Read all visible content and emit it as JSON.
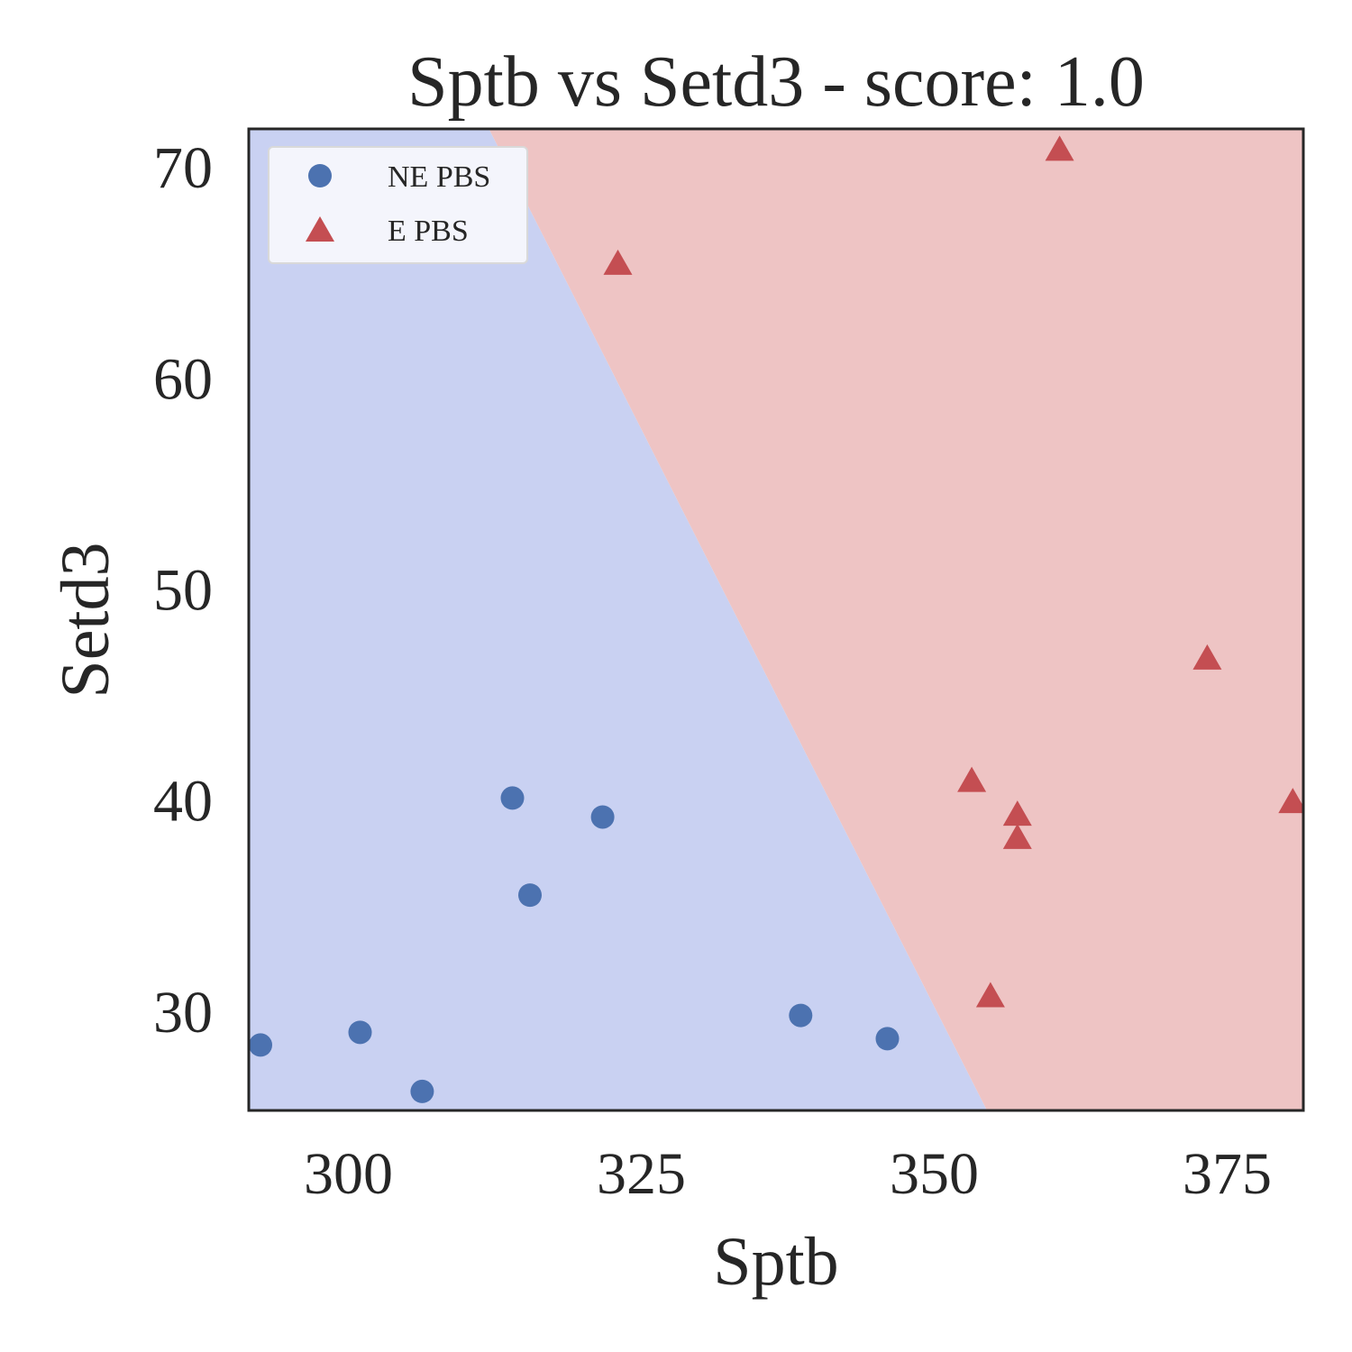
{
  "chart_data": {
    "type": "scatter",
    "title": "Sptb vs Setd3 - score: 1.0",
    "xlabel": "Sptb",
    "ylabel": "Setd3",
    "xlim": [
      291.5,
      381.5
    ],
    "ylim": [
      25.3,
      71.8
    ],
    "xticks": [
      300,
      325,
      350,
      375
    ],
    "yticks": [
      30,
      40,
      50,
      60,
      70
    ],
    "grid": false,
    "legend": "top-left",
    "decision_boundary": {
      "points": [
        [
          312.0,
          71.8
        ],
        [
          354.5,
          25.3
        ]
      ],
      "left_region_color": "#c9d1f2",
      "right_region_color": "#eec4c4"
    },
    "series": [
      {
        "name": "NE PBS",
        "marker": "circle",
        "color": "#4c72b0",
        "points": [
          [
            292.5,
            28.4
          ],
          [
            301.0,
            29.0
          ],
          [
            306.3,
            26.2
          ],
          [
            314.0,
            40.1
          ],
          [
            315.5,
            35.5
          ],
          [
            321.7,
            39.2
          ],
          [
            338.6,
            29.8
          ],
          [
            346.0,
            28.7
          ]
        ]
      },
      {
        "name": "E PBS",
        "marker": "triangle",
        "color": "#c44e52",
        "points": [
          [
            323.0,
            65.4
          ],
          [
            353.2,
            40.9
          ],
          [
            354.8,
            30.7
          ],
          [
            357.1,
            39.3
          ],
          [
            357.1,
            38.2
          ],
          [
            360.7,
            70.8
          ],
          [
            373.3,
            46.7
          ],
          [
            380.6,
            39.9
          ]
        ]
      }
    ]
  }
}
